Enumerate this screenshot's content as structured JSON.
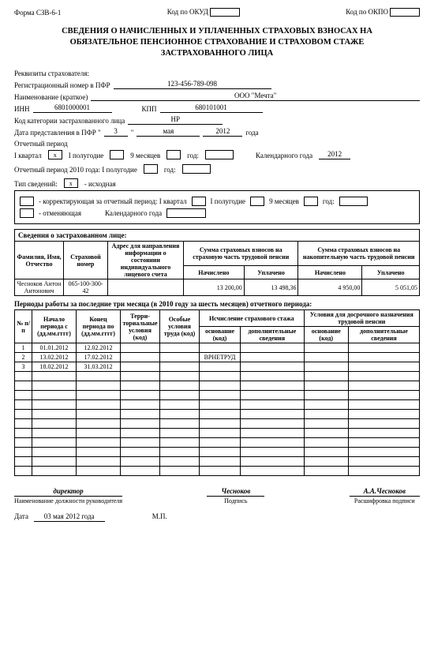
{
  "top": {
    "form": "Форма СЗВ-6-1",
    "okud_lbl": "Код по ОКУД",
    "okpo_lbl": "Код по ОКПО"
  },
  "title": {
    "l1": "СВЕДЕНИЯ О НАЧИСЛЕННЫХ И УПЛАЧЕННЫХ СТРАХОВЫХ ВЗНОСАХ НА",
    "l2": "ОБЯЗАТЕЛЬНОЕ ПЕНСИОННОЕ СТРАХОВАНИЕ И СТРАХОВОМ СТАЖЕ",
    "l3": "ЗАСТРАХОВАННОГО ЛИЦА"
  },
  "req": {
    "hdr": "Реквизиты страхователя:",
    "reg_lbl": "Регистрационный номер в ПФР",
    "reg_val": "123-456-789-098",
    "name_lbl": "Наименование (краткое)",
    "name_val": "ООО \"Мечта\"",
    "inn_lbl": "ИНН",
    "inn_val": "6801000001",
    "kpp_lbl": "КПП",
    "kpp_val": "680101001",
    "cat_lbl": "Код категории застрахованного лица",
    "cat_val": "НР",
    "date_lbl": "Дата представления в ПФР \"",
    "date_d": "3",
    "date_q": "\"",
    "date_m": "мая",
    "date_y": "2012",
    "date_suf": "года"
  },
  "period": {
    "hdr": "Отчетный период",
    "q1": "I квартал",
    "half": "I полугодие",
    "m9": "9 месяцев",
    "yr": "год:",
    "cal": "Календарного года",
    "cal_val": "2012",
    "q1_mark": "x",
    "prev": "Отчетный период 2010 года: I полугодие",
    "prev_yr": "год:"
  },
  "type": {
    "hdr": "Тип сведений:",
    "orig": "- исходная",
    "orig_mark": "x",
    "corr": "- корректирующая   за отчетный период:   I квартал",
    "half": "I полугодие",
    "m9": "9 месяцев",
    "yr": "год:",
    "cancel": "- отменяющая",
    "cal": "Календарного года"
  },
  "t1": {
    "hdr": "Сведения о застрахованном лице:",
    "col_fio": "Фамилия, Имя, Отчество",
    "col_num": "Страховой номер",
    "col_addr": "Адрес для направления информации о состоянии индивидуального лицевого счета",
    "col_sum1": "Сумма страховых взносов на страховую часть трудовой пенсии",
    "col_sum2": "Сумма страховых взносов на накопительную часть трудовой пенсии",
    "col_acc": "Начислено",
    "col_paid": "Уплачено",
    "fio": "Чесноков Антон Антонович",
    "num": "065-100-300-42",
    "s1_acc": "13 200,00",
    "s1_paid": "13 498,36",
    "s2_acc": "4 950,00",
    "s2_paid": "5 051,05"
  },
  "t2": {
    "hdr": "Периоды работы за последние три месяца (в 2010 году за шесть месяцев) отчетного периода:",
    "col_n": "№ п/п",
    "col_start": "Начало периода с (дд.мм.гггг)",
    "col_end": "Конец периода по (дд.мм.гггг)",
    "col_terr": "Терри-ториальные условия (код)",
    "col_spec": "Особые условия труда (код)",
    "col_stage": "Исчисление страхового стажа",
    "col_early": "Условия для досрочного назначения трудовой пенсии",
    "col_base": "основание (код)",
    "col_add": "дополнительные сведения",
    "rows": [
      {
        "n": "1",
        "start": "01.01.2012",
        "end": "12.02.2012",
        "base": ""
      },
      {
        "n": "2",
        "start": "13.02.2012",
        "end": "17.02.2012",
        "base": "ВРНЕТРУД"
      },
      {
        "n": "3",
        "start": "18.02.2012",
        "end": "31.03.2012",
        "base": ""
      }
    ],
    "empty_rows": 11
  },
  "sig": {
    "pos": "директор",
    "pos_lbl": "Наименование должности руководителя",
    "sign": "Чесноков",
    "sign_lbl": "Подпись",
    "dec": "А.А.Чесноков",
    "dec_lbl": "Расшифровка подписи",
    "date_lbl": "Дата",
    "date_val": "03 мая 2012 года",
    "mp": "М.П."
  }
}
